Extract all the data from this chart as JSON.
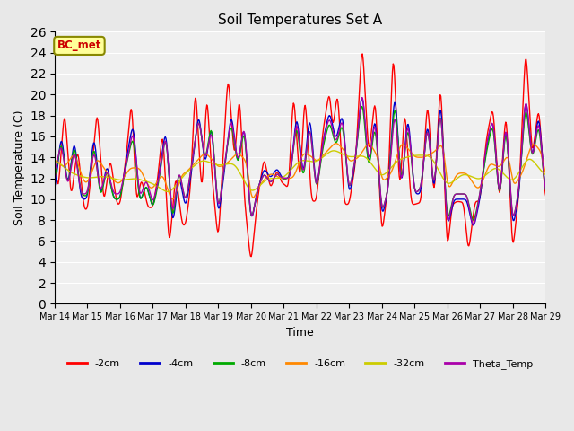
{
  "title": "Soil Temperatures Set A",
  "xlabel": "Time",
  "ylabel": "Soil Temperature (C)",
  "ylim": [
    0,
    26
  ],
  "yticks": [
    0,
    2,
    4,
    6,
    8,
    10,
    12,
    14,
    16,
    18,
    20,
    22,
    24,
    26
  ],
  "annotation_text": "BC_met",
  "annotation_color": "#cc0000",
  "annotation_bg": "#ffff99",
  "annotation_border": "#888800",
  "series_colors": {
    "-2cm": "#ff0000",
    "-4cm": "#0000cc",
    "-8cm": "#00aa00",
    "-16cm": "#ff8800",
    "-32cm": "#cccc00",
    "Theta_Temp": "#aa00aa"
  },
  "background_color": "#e8e8e8",
  "plot_bg": "#f0f0f0",
  "grid_color": "#ffffff",
  "xtick_labels": [
    "Mar 14",
    "Mar 15",
    "Mar 16",
    "Mar 17",
    "Mar 18",
    "Mar 19",
    "Mar 20",
    "Mar 21",
    "Mar 22",
    "Mar 23",
    "Mar 24",
    "Mar 25",
    "Mar 26",
    "Mar 27",
    "Mar 28",
    "Mar 29"
  ],
  "n_days": 16,
  "legend_entries": [
    "-2cm",
    "-4cm",
    "-8cm",
    "-16cm",
    "-32cm",
    "Theta_Temp"
  ]
}
